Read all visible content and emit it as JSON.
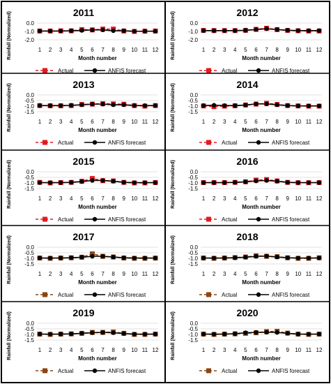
{
  "figure": {
    "xlabel": "Month number",
    "ylabel": "Rainfall (Normalized)",
    "legend": {
      "actual": "Actual",
      "forecast": "ANFIS forecast"
    },
    "colors": {
      "actual": "#e11b22",
      "actual_dark": "#8b4513",
      "forecast": "#000000",
      "grid": "#d9d9d9",
      "border": "#000000"
    }
  },
  "chart_data": [
    {
      "type": "line",
      "title": "2011",
      "ylim": [
        -2.0,
        0.0
      ],
      "yticks": [
        "0.0",
        "-1.0",
        "-2.0"
      ],
      "ytick_values": [
        0.0,
        -1.0,
        -2.0
      ],
      "legend_position": "bottom",
      "actual_color": "#e11b22",
      "x": [
        1,
        2,
        3,
        4,
        5,
        6,
        7,
        8,
        9,
        10,
        11,
        12
      ],
      "series": [
        {
          "name": "Actual",
          "values": [
            -0.95,
            -0.95,
            -0.93,
            -0.93,
            -0.78,
            -0.82,
            -0.72,
            -0.72,
            -0.95,
            -1.0,
            -0.97,
            -0.95
          ]
        },
        {
          "name": "ANFIS forecast",
          "values": [
            -0.95,
            -0.95,
            -0.95,
            -0.92,
            -0.88,
            -0.82,
            -0.82,
            -0.92,
            -0.92,
            -0.98,
            -0.98,
            -0.98
          ]
        }
      ]
    },
    {
      "type": "line",
      "title": "2012",
      "ylim": [
        -2.0,
        0.0
      ],
      "yticks": [
        "0.0",
        "-1.0",
        "-2.0"
      ],
      "ytick_values": [
        0.0,
        -1.0,
        -2.0
      ],
      "legend_position": "bottom",
      "actual_color": "#e11b22",
      "x": [
        1,
        2,
        3,
        4,
        5,
        6,
        7,
        8,
        9,
        10,
        11,
        12
      ],
      "series": [
        {
          "name": "Actual",
          "values": [
            -0.88,
            -0.9,
            -0.9,
            -0.9,
            -0.87,
            -0.75,
            -0.62,
            -0.78,
            -0.88,
            -0.92,
            -0.95,
            -0.95
          ]
        },
        {
          "name": "ANFIS forecast",
          "values": [
            -0.9,
            -0.9,
            -0.9,
            -0.9,
            -0.87,
            -0.78,
            -0.68,
            -0.78,
            -0.86,
            -0.9,
            -0.9,
            -0.9
          ]
        }
      ]
    },
    {
      "type": "line",
      "title": "2013",
      "ylim": [
        -1.5,
        0.0
      ],
      "yticks": [
        "0.0",
        "-0.5",
        "-1.0",
        "-1.5"
      ],
      "ytick_values": [
        0.0,
        -0.5,
        -1.0,
        -1.5
      ],
      "legend_position": "bottom",
      "actual_color": "#e11b22",
      "x": [
        1,
        2,
        3,
        4,
        5,
        6,
        7,
        8,
        9,
        10,
        11,
        12
      ],
      "series": [
        {
          "name": "Actual",
          "values": [
            -0.95,
            -0.97,
            -0.97,
            -0.95,
            -0.85,
            -0.82,
            -0.78,
            -0.8,
            -0.83,
            -0.95,
            -1.0,
            -0.95
          ]
        },
        {
          "name": "ANFIS forecast",
          "values": [
            -0.95,
            -0.95,
            -0.95,
            -0.93,
            -0.88,
            -0.82,
            -0.82,
            -0.88,
            -0.88,
            -0.95,
            -0.95,
            -0.95
          ]
        }
      ]
    },
    {
      "type": "line",
      "title": "2014",
      "ylim": [
        -1.5,
        0.0
      ],
      "yticks": [
        "0.0",
        "-0.5",
        "-1.0",
        "-1.5"
      ],
      "ytick_values": [
        0.0,
        -0.5,
        -1.0,
        -1.5
      ],
      "legend_position": "bottom",
      "actual_color": "#e11b22",
      "x": [
        1,
        2,
        3,
        4,
        5,
        6,
        7,
        8,
        9,
        10,
        11,
        12
      ],
      "series": [
        {
          "name": "Actual",
          "values": [
            -0.98,
            -1.05,
            -1.0,
            -0.97,
            -0.9,
            -0.82,
            -0.75,
            -0.85,
            -0.95,
            -0.98,
            -1.0,
            -1.0
          ]
        },
        {
          "name": "ANFIS forecast",
          "values": [
            -0.95,
            -0.92,
            -0.95,
            -0.95,
            -0.9,
            -0.8,
            -0.8,
            -0.88,
            -0.95,
            -0.98,
            -0.98,
            -0.98
          ]
        }
      ]
    },
    {
      "type": "line",
      "title": "2015",
      "ylim": [
        -1.5,
        0.0
      ],
      "yticks": [
        "0.0",
        "-0.5",
        "-1.0",
        "-1.5"
      ],
      "ytick_values": [
        0.0,
        -0.5,
        -1.0,
        -1.5
      ],
      "legend_position": "bottom",
      "actual_color": "#e11b22",
      "x": [
        1,
        2,
        3,
        4,
        5,
        6,
        7,
        8,
        9,
        10,
        11,
        12
      ],
      "series": [
        {
          "name": "Actual",
          "values": [
            -0.95,
            -1.0,
            -0.97,
            -0.95,
            -0.85,
            -0.6,
            -0.8,
            -0.82,
            -0.95,
            -1.0,
            -1.0,
            -0.97
          ]
        },
        {
          "name": "ANFIS forecast",
          "values": [
            -0.97,
            -0.97,
            -0.97,
            -0.95,
            -0.88,
            -0.78,
            -0.78,
            -0.85,
            -0.95,
            -0.97,
            -0.97,
            -0.97
          ]
        }
      ]
    },
    {
      "type": "line",
      "title": "2016",
      "ylim": [
        -1.5,
        0.0
      ],
      "yticks": [
        "0.0",
        "-0.5",
        "-1.0",
        "-1.5"
      ],
      "ytick_values": [
        0.0,
        -0.5,
        -1.0,
        -1.5
      ],
      "legend_position": "bottom",
      "actual_color": "#e11b22",
      "x": [
        1,
        2,
        3,
        4,
        5,
        6,
        7,
        8,
        9,
        10,
        11,
        12
      ],
      "series": [
        {
          "name": "Actual",
          "values": [
            -0.97,
            -0.97,
            -0.97,
            -0.95,
            -0.9,
            -0.75,
            -0.7,
            -0.82,
            -0.95,
            -0.98,
            -0.98,
            -0.97
          ]
        },
        {
          "name": "ANFIS forecast",
          "values": [
            -0.97,
            -0.97,
            -0.97,
            -0.95,
            -0.9,
            -0.82,
            -0.78,
            -0.85,
            -0.95,
            -0.97,
            -0.97,
            -0.97
          ]
        }
      ]
    },
    {
      "type": "line",
      "title": "2017",
      "ylim": [
        -1.5,
        0.0
      ],
      "yticks": [
        "0.0",
        "-0.5",
        "-1.0",
        "-1.5"
      ],
      "ytick_values": [
        0.0,
        -0.5,
        -1.0,
        -1.5
      ],
      "legend_position": "bottom",
      "actual_color": "#8b4513",
      "x": [
        1,
        2,
        3,
        4,
        5,
        6,
        7,
        8,
        9,
        10,
        11,
        12
      ],
      "series": [
        {
          "name": "Actual",
          "values": [
            -0.97,
            -1.0,
            -0.97,
            -0.95,
            -0.9,
            -0.6,
            -0.82,
            -0.88,
            -0.97,
            -1.0,
            -1.0,
            -0.98
          ]
        },
        {
          "name": "ANFIS forecast",
          "values": [
            -0.97,
            -0.97,
            -0.97,
            -0.95,
            -0.9,
            -0.82,
            -0.82,
            -0.88,
            -0.95,
            -0.97,
            -0.97,
            -0.97
          ]
        }
      ]
    },
    {
      "type": "line",
      "title": "2018",
      "ylim": [
        -1.5,
        0.0
      ],
      "yticks": [
        "0.0",
        "-0.5",
        "-1.0",
        "-1.5"
      ],
      "ytick_values": [
        0.0,
        -0.5,
        -1.0,
        -1.5
      ],
      "legend_position": "bottom",
      "actual_color": "#8b4513",
      "x": [
        1,
        2,
        3,
        4,
        5,
        6,
        7,
        8,
        9,
        10,
        11,
        12
      ],
      "series": [
        {
          "name": "Actual",
          "values": [
            -0.97,
            -1.0,
            -0.97,
            -0.93,
            -0.88,
            -0.78,
            -0.82,
            -0.85,
            -0.95,
            -1.0,
            -1.0,
            -0.95
          ]
        },
        {
          "name": "ANFIS forecast",
          "values": [
            -0.97,
            -0.97,
            -0.97,
            -0.95,
            -0.9,
            -0.82,
            -0.8,
            -0.88,
            -0.95,
            -0.97,
            -0.97,
            -0.97
          ]
        }
      ]
    },
    {
      "type": "line",
      "title": "2019",
      "ylim": [
        -1.5,
        0.0
      ],
      "yticks": [
        "0.0",
        "-0.5",
        "-1.0",
        "-1.5"
      ],
      "ytick_values": [
        0.0,
        -0.5,
        -1.0,
        -1.5
      ],
      "legend_position": "bottom",
      "actual_color": "#8b4513",
      "x": [
        1,
        2,
        3,
        4,
        5,
        6,
        7,
        8,
        9,
        10,
        11,
        12
      ],
      "series": [
        {
          "name": "Actual",
          "values": [
            -0.97,
            -1.0,
            -0.97,
            -0.95,
            -0.9,
            -0.82,
            -0.82,
            -0.78,
            -0.9,
            -1.0,
            -1.0,
            -0.97
          ]
        },
        {
          "name": "ANFIS forecast",
          "values": [
            -0.97,
            -0.97,
            -0.97,
            -0.95,
            -0.9,
            -0.85,
            -0.82,
            -0.85,
            -0.92,
            -0.97,
            -0.97,
            -0.97
          ]
        }
      ]
    },
    {
      "type": "line",
      "title": "2020",
      "ylim": [
        -1.5,
        0.0
      ],
      "yticks": [
        "0.0",
        "-0.5",
        "-1.0",
        "-1.5"
      ],
      "ytick_values": [
        0.0,
        -0.5,
        -1.0,
        -1.5
      ],
      "legend_position": "bottom",
      "actual_color": "#8b4513",
      "x": [
        1,
        2,
        3,
        4,
        5,
        6,
        7,
        8,
        9,
        10,
        11,
        12
      ],
      "series": [
        {
          "name": "Actual",
          "values": [
            -0.97,
            -1.0,
            -0.97,
            -0.95,
            -0.9,
            -0.85,
            -0.75,
            -0.72,
            -0.88,
            -0.97,
            -1.0,
            -0.97
          ]
        },
        {
          "name": "ANFIS forecast",
          "values": [
            -0.97,
            -0.97,
            -0.97,
            -0.93,
            -0.85,
            -0.82,
            -0.8,
            -0.82,
            -0.9,
            -0.97,
            -0.97,
            -0.97
          ]
        }
      ]
    }
  ]
}
